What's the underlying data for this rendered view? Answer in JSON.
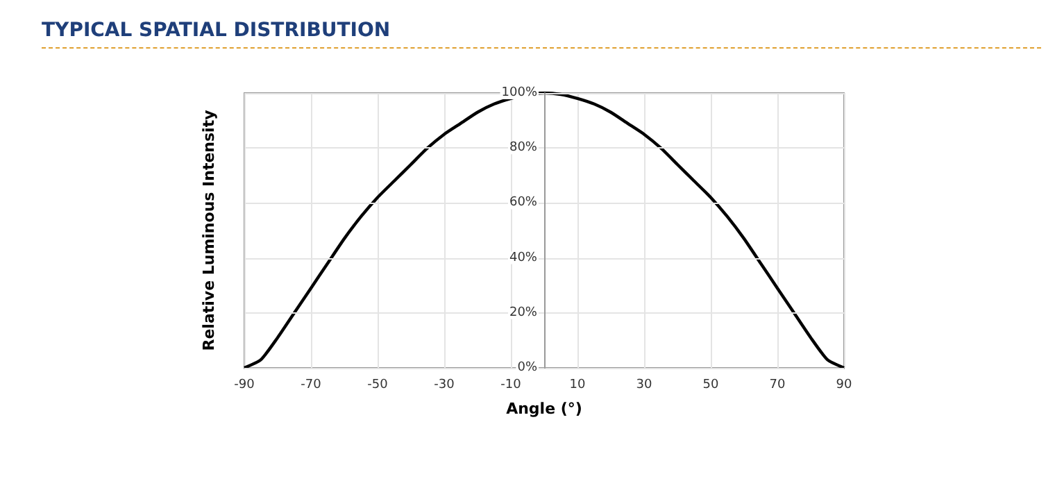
{
  "chart_data": {
    "type": "line",
    "title": "TYPICAL SPATIAL DISTRIBUTION",
    "xlabel": "Angle (°)",
    "ylabel": "Relative Luminous Intensity",
    "x": [
      -90,
      -85,
      -80,
      -75,
      -70,
      -65,
      -60,
      -55,
      -50,
      -45,
      -40,
      -35,
      -30,
      -25,
      -20,
      -15,
      -10,
      -5,
      0,
      5,
      10,
      15,
      20,
      25,
      30,
      35,
      40,
      45,
      50,
      55,
      60,
      65,
      70,
      75,
      80,
      85,
      90
    ],
    "series": [
      {
        "color": "#000000",
        "values": [
          0,
          3,
          11,
          20,
          29,
          38,
          47,
          55,
          62,
          68,
          74,
          80,
          85,
          89,
          93,
          96,
          98,
          99.5,
          100,
          99.5,
          98,
          96,
          93,
          89,
          85,
          80,
          74,
          68,
          62,
          55,
          47,
          38,
          29,
          20,
          11,
          3,
          0
        ]
      }
    ],
    "xlim": [
      -90,
      90
    ],
    "xticks": [
      -90,
      -70,
      -50,
      -30,
      -10,
      10,
      30,
      50,
      70,
      90
    ],
    "ylim": [
      0,
      100
    ],
    "yticks": [
      {
        "value": 0,
        "label": "0%"
      },
      {
        "value": 20,
        "label": "20%"
      },
      {
        "value": 40,
        "label": "40%"
      },
      {
        "value": 60,
        "label": "60%"
      },
      {
        "value": 80,
        "label": "80%"
      },
      {
        "value": 100,
        "label": "100%"
      }
    ],
    "grid": true,
    "legend": false,
    "marker": "none",
    "line_style": "solid"
  }
}
